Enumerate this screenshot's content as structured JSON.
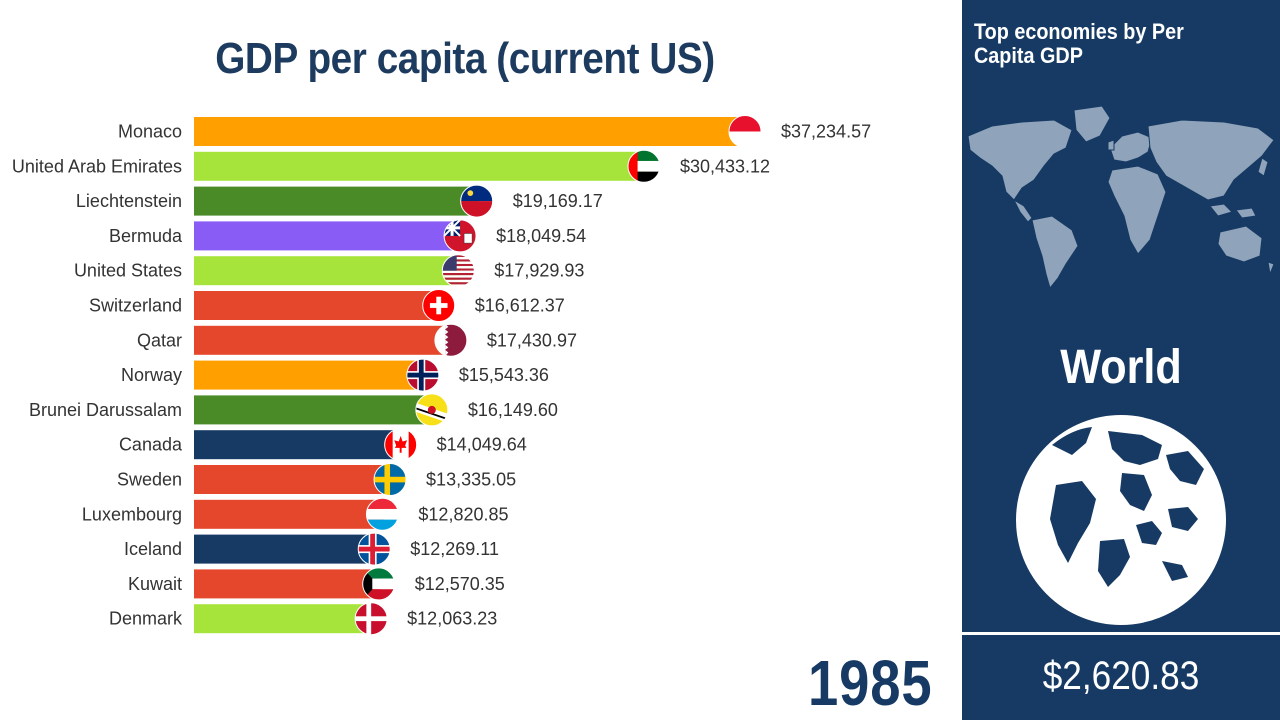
{
  "chart_data": {
    "type": "bar",
    "orientation": "horizontal",
    "title": "GDP per capita (current US)",
    "year": "1985",
    "xlim": [
      0,
      37234.57
    ],
    "categories": [
      "Monaco",
      "United Arab Emirates",
      "Liechtenstein",
      "Bermuda",
      "United States",
      "Switzerland",
      "Qatar",
      "Norway",
      "Brunei Darussalam",
      "Canada",
      "Sweden",
      "Luxembourg",
      "Iceland",
      "Kuwait",
      "Denmark"
    ],
    "values": [
      37234.57,
      30433.12,
      19169.17,
      18049.54,
      17929.93,
      16612.37,
      17430.97,
      15543.36,
      16149.6,
      14049.64,
      13335.05,
      12820.85,
      12269.11,
      12570.35,
      12063.23
    ],
    "value_labels": [
      "$37,234.57",
      "$30,433.12",
      "$19,169.17",
      "$18,049.54",
      "$17,929.93",
      "$16,612.37",
      "$17,430.97",
      "$15,543.36",
      "$16,149.60",
      "$14,049.64",
      "$13,335.05",
      "$12,820.85",
      "$12,269.11",
      "$12,570.35",
      "$12,063.23"
    ],
    "bar_colors": [
      "#ff9f00",
      "#a6e43c",
      "#4a8b28",
      "#8a5cf6",
      "#a6e43c",
      "#e4472b",
      "#e4472b",
      "#ff9f00",
      "#4a8b28",
      "#163a63",
      "#e4472b",
      "#e4472b",
      "#163a63",
      "#e4472b",
      "#a6e43c"
    ],
    "flags": [
      "flag-monaco",
      "flag-uae",
      "flag-liechtenstein",
      "flag-bermuda",
      "flag-usa",
      "flag-switzerland",
      "flag-qatar",
      "flag-norway",
      "flag-brunei",
      "flag-canada",
      "flag-sweden",
      "flag-luxembourg",
      "flag-iceland",
      "flag-kuwait",
      "flag-denmark"
    ]
  },
  "side_panel": {
    "title": "Top economies by Per Capita GDP",
    "region": "World",
    "region_value": "$2,620.83",
    "map_icon": "world-map-icon",
    "globe_icon": "globe-icon"
  },
  "colors": {
    "title": "#1d3b5e",
    "panel_bg": "#163a63",
    "map_land": "#8fa3bb"
  }
}
